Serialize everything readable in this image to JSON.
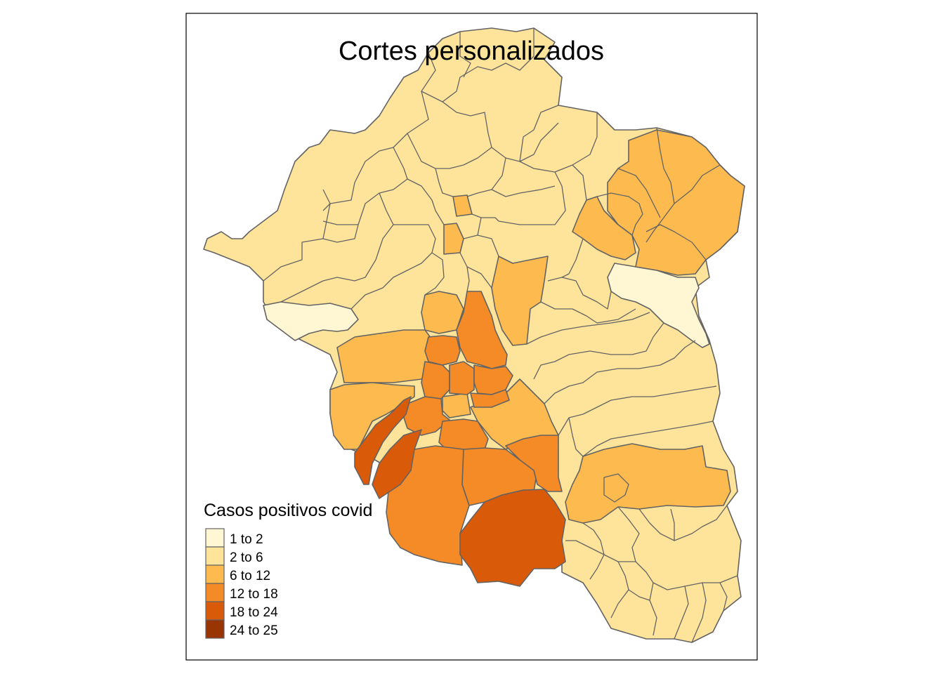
{
  "title": "Cortes personalizados",
  "legend": {
    "title": "Casos positivos covid",
    "items": [
      {
        "label": "1 to 2",
        "color": "#fff7d3"
      },
      {
        "label": "2 to 6",
        "color": "#fee49b"
      },
      {
        "label": "6 to 12",
        "color": "#fdbb4f"
      },
      {
        "label": "12 to 18",
        "color": "#f58b26"
      },
      {
        "label": "18 to 24",
        "color": "#d95b0a"
      },
      {
        "label": "24 to 25",
        "color": "#993404"
      }
    ]
  }
}
